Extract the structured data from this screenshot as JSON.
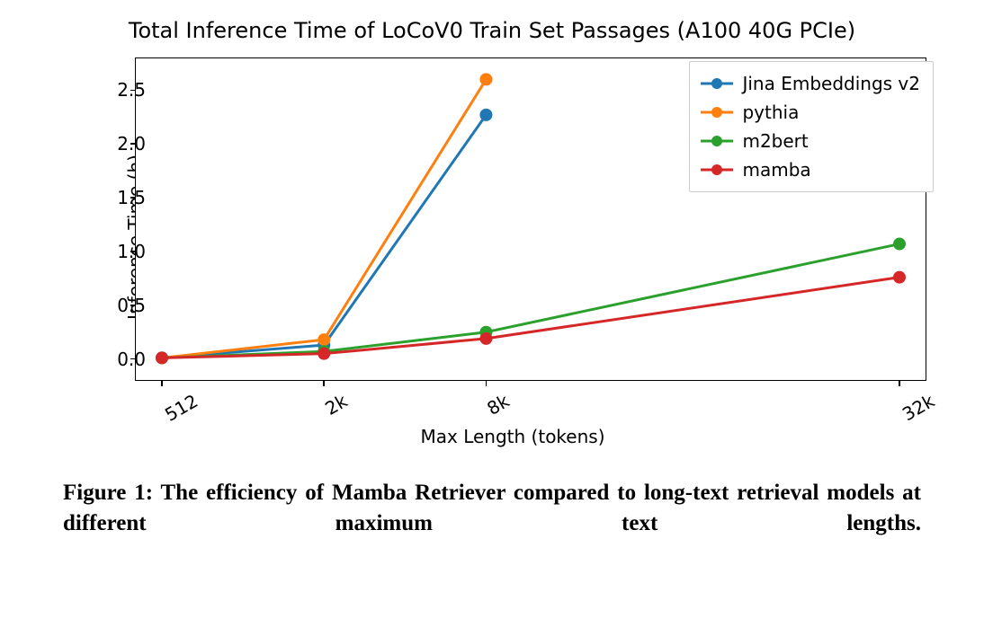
{
  "chart": {
    "type": "line",
    "title": "Total Inference Time of LoCoV0 Train Set Passages (A100 40G PCIe)",
    "title_fontsize": 24,
    "xlabel": "Max Length (tokens)",
    "ylabel": "Inference Time (h)",
    "label_fontsize": 20,
    "tick_fontsize": 20,
    "background_color": "#ffffff",
    "frame_color": "#000000",
    "xlim": [
      0,
      4.55
    ],
    "ylim": [
      -0.12,
      2.72
    ],
    "xticks": [
      {
        "pos": 0,
        "label": "512"
      },
      {
        "pos": 1,
        "label": "2k"
      },
      {
        "pos": 2,
        "label": "8k"
      },
      {
        "pos": 4.55,
        "label": "32k"
      }
    ],
    "yticks": [
      0.0,
      0.5,
      1.0,
      1.5,
      2.0,
      2.5
    ],
    "line_width": 3,
    "marker_size": 7,
    "marker_style": "circle",
    "series": [
      {
        "name": "Jina Embeddings v2",
        "color": "#1f77b4",
        "x": [
          0,
          1,
          2
        ],
        "y": [
          0.01,
          0.13,
          2.27
        ]
      },
      {
        "name": "pythia",
        "color": "#ff7f0e",
        "x": [
          0,
          1,
          2
        ],
        "y": [
          0.01,
          0.18,
          2.6
        ]
      },
      {
        "name": "m2bert",
        "color": "#2ca02c",
        "x": [
          0,
          1,
          2,
          4.55
        ],
        "y": [
          0.01,
          0.07,
          0.25,
          1.07
        ]
      },
      {
        "name": "mamba",
        "color": "#d62728",
        "x": [
          0,
          1,
          2,
          4.55
        ],
        "y": [
          0.01,
          0.05,
          0.19,
          0.76
        ]
      }
    ],
    "legend": {
      "position": "upper-right",
      "border_color": "#cccccc",
      "background": "#ffffff",
      "fontsize": 20
    }
  },
  "caption": {
    "text": "Figure 1: The efficiency of Mamba Retriever compared to long-text retrieval models at different maximum text lengths.",
    "font_family": "serif",
    "font_weight": "bold",
    "fontsize": 25
  }
}
